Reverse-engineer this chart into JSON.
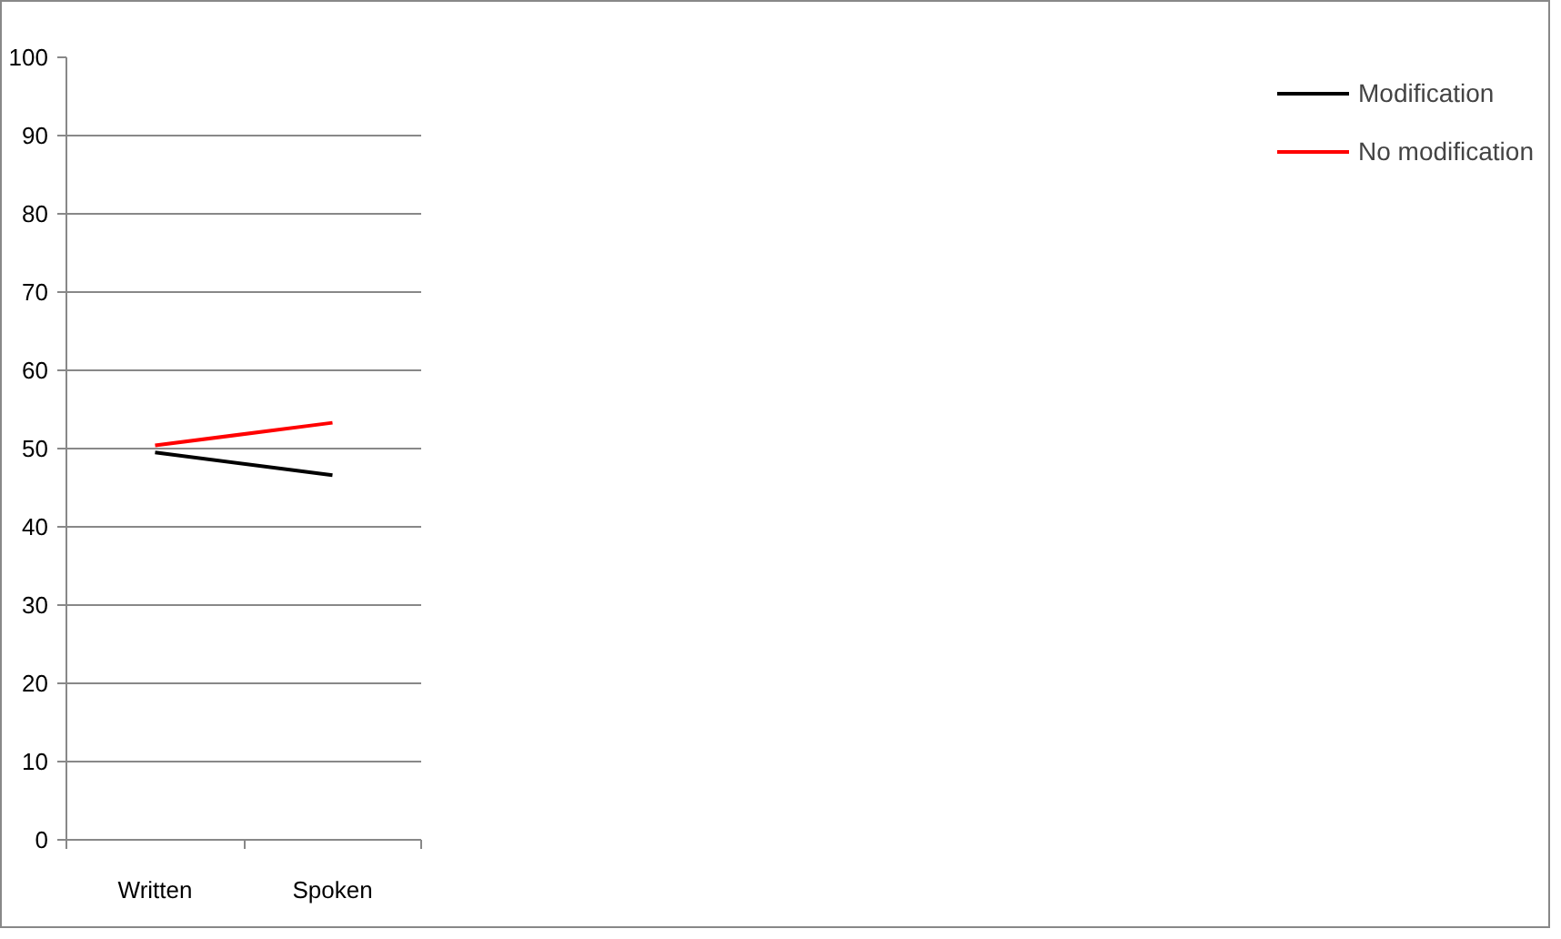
{
  "chart_data": {
    "type": "line",
    "categories": [
      "Written",
      "Spoken"
    ],
    "series": [
      {
        "name": "Modification",
        "color": "#000000",
        "values": [
          49.5,
          46.6
        ]
      },
      {
        "name": "No modification",
        "color": "#ff0000",
        "values": [
          50.4,
          53.3
        ]
      }
    ],
    "ylim": [
      0,
      100
    ],
    "yticks": [
      0,
      10,
      20,
      30,
      40,
      50,
      60,
      70,
      80,
      90,
      100
    ],
    "grid": "y",
    "legend": "right",
    "marker": "none",
    "line_style": "solid"
  }
}
